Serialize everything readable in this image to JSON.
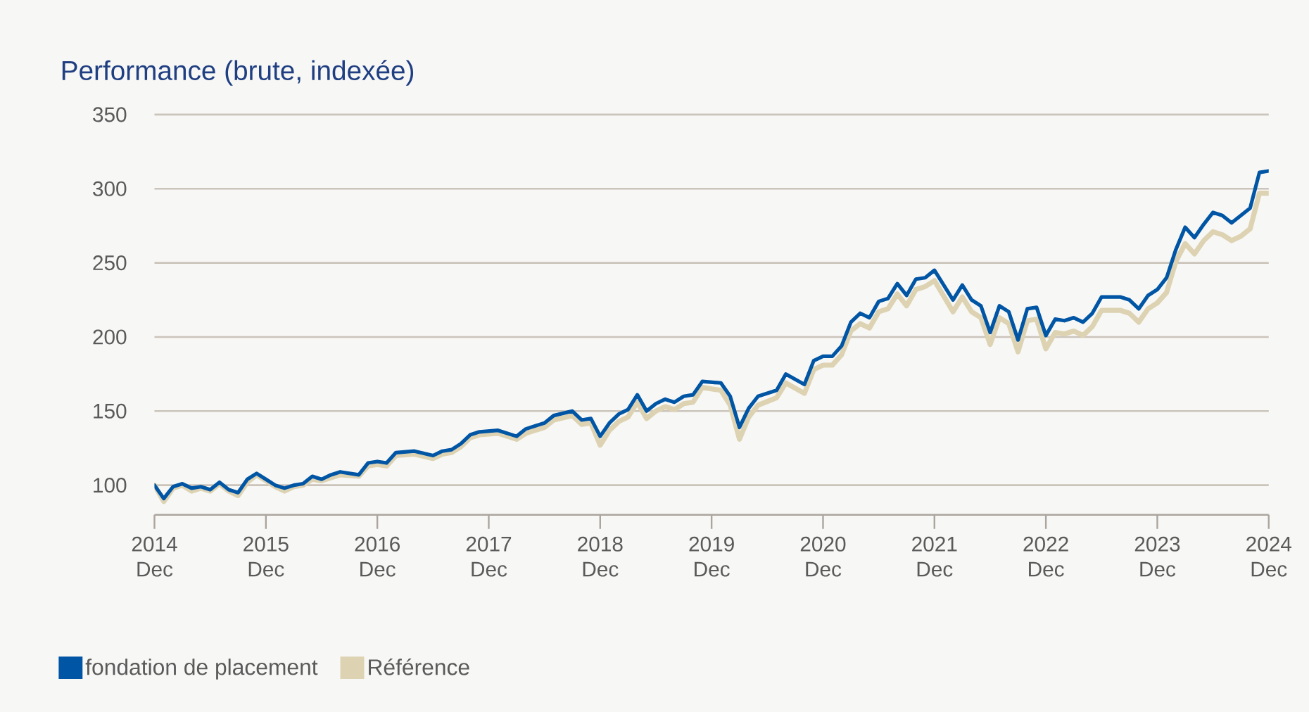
{
  "chart_data": {
    "type": "line",
    "title": "Performance (brute, indexée)",
    "x": [
      "2014-12",
      "2015-01",
      "2015-02",
      "2015-03",
      "2015-04",
      "2015-05",
      "2015-06",
      "2015-07",
      "2015-08",
      "2015-09",
      "2015-10",
      "2015-11",
      "2015-12",
      "2016-01",
      "2016-02",
      "2016-03",
      "2016-04",
      "2016-05",
      "2016-06",
      "2016-07",
      "2016-08",
      "2016-10",
      "2016-11",
      "2016-12",
      "2017-01",
      "2017-02",
      "2017-04",
      "2017-06",
      "2017-07",
      "2017-08",
      "2017-09",
      "2017-10",
      "2017-11",
      "2018-01",
      "2018-03",
      "2018-04",
      "2018-06",
      "2018-07",
      "2018-09",
      "2018-10",
      "2018-11",
      "2018-12",
      "2019-01",
      "2019-02",
      "2019-03",
      "2019-04",
      "2019-05",
      "2019-06",
      "2019-07",
      "2019-08",
      "2019-09",
      "2019-10",
      "2019-11",
      "2020-01",
      "2020-02",
      "2020-03",
      "2020-04",
      "2020-05",
      "2020-07",
      "2020-08",
      "2020-10",
      "2020-11",
      "2020-12",
      "2021-01",
      "2021-02",
      "2021-03",
      "2021-04",
      "2021-05",
      "2021-06",
      "2021-07",
      "2021-08",
      "2021-09",
      "2021-10",
      "2021-11",
      "2021-12",
      "2022-02",
      "2022-03",
      "2022-04",
      "2022-05",
      "2022-06",
      "2022-07",
      "2022-08",
      "2022-09",
      "2022-10",
      "2022-11",
      "2022-12",
      "2023-01",
      "2023-02",
      "2023-03",
      "2023-04",
      "2023-05",
      "2023-06",
      "2023-08",
      "2023-09",
      "2023-10",
      "2023-11",
      "2023-12",
      "2024-01",
      "2024-02",
      "2024-03",
      "2024-04",
      "2024-05",
      "2024-06",
      "2024-07",
      "2024-08",
      "2024-09",
      "2024-10",
      "2024-11",
      "2024-12"
    ],
    "series": [
      {
        "name": "fondation de placement",
        "color": "#0055a4",
        "values": [
          100,
          91,
          99,
          101,
          98,
          99,
          97,
          102,
          97,
          95,
          104,
          108,
          104,
          100,
          98,
          100,
          101,
          106,
          104,
          107,
          109,
          107,
          115,
          116,
          115,
          122,
          123,
          120,
          123,
          124,
          128,
          134,
          136,
          137,
          133,
          138,
          142,
          147,
          150,
          144,
          145,
          133,
          142,
          148,
          151,
          161,
          150,
          155,
          158,
          156,
          160,
          161,
          170,
          169,
          160,
          139,
          152,
          160,
          164,
          175,
          168,
          184,
          187,
          187,
          194,
          210,
          216,
          213,
          224,
          226,
          236,
          228,
          239,
          240,
          245,
          225,
          235,
          225,
          221,
          203,
          221,
          217,
          198,
          219,
          220,
          201,
          212,
          211,
          213,
          210,
          216,
          227,
          227,
          225,
          219,
          228,
          232,
          240,
          259,
          274,
          267,
          276,
          284,
          282,
          277,
          282,
          287,
          311,
          312
        ]
      },
      {
        "name": "Référence",
        "color": "#ddd3b3",
        "values": [
          100,
          89,
          98,
          100,
          96,
          98,
          96,
          101,
          96,
          93,
          102,
          107,
          103,
          99,
          96,
          99,
          100,
          104,
          103,
          105,
          107,
          106,
          113,
          114,
          113,
          120,
          121,
          118,
          121,
          122,
          126,
          132,
          134,
          135,
          131,
          135,
          139,
          144,
          147,
          141,
          142,
          127,
          137,
          143,
          146,
          156,
          145,
          150,
          153,
          151,
          155,
          156,
          166,
          164,
          154,
          131,
          146,
          154,
          159,
          169,
          162,
          178,
          181,
          181,
          188,
          204,
          209,
          206,
          217,
          219,
          229,
          221,
          232,
          234,
          238,
          217,
          227,
          217,
          213,
          195,
          213,
          209,
          190,
          211,
          212,
          192,
          203,
          202,
          204,
          201,
          207,
          218,
          218,
          216,
          210,
          219,
          223,
          230,
          251,
          263,
          256,
          265,
          271,
          269,
          265,
          268,
          273,
          297,
          297
        ]
      }
    ],
    "xlim": [
      "2014-12",
      "2024-12"
    ],
    "xticks": [
      {
        "value": "2014-12",
        "label": "2014 Dec"
      },
      {
        "value": "2015-12",
        "label": "2015 Dec"
      },
      {
        "value": "2016-12",
        "label": "2016 Dec"
      },
      {
        "value": "2017-12",
        "label": "2017 Dec"
      },
      {
        "value": "2018-12",
        "label": "2018 Dec"
      },
      {
        "value": "2019-12",
        "label": "2019 Dec"
      },
      {
        "value": "2020-12",
        "label": "2020 Dec"
      },
      {
        "value": "2021-12",
        "label": "2021 Dec"
      },
      {
        "value": "2022-12",
        "label": "2022 Dec"
      },
      {
        "value": "2023-12",
        "label": "2023 Dec"
      },
      {
        "value": "2024-12",
        "label": "2024 Dec"
      }
    ],
    "ylim": [
      80,
      350
    ],
    "yticks": [
      100,
      150,
      200,
      250,
      300,
      350
    ],
    "grid": "y",
    "legend": "bottom"
  }
}
